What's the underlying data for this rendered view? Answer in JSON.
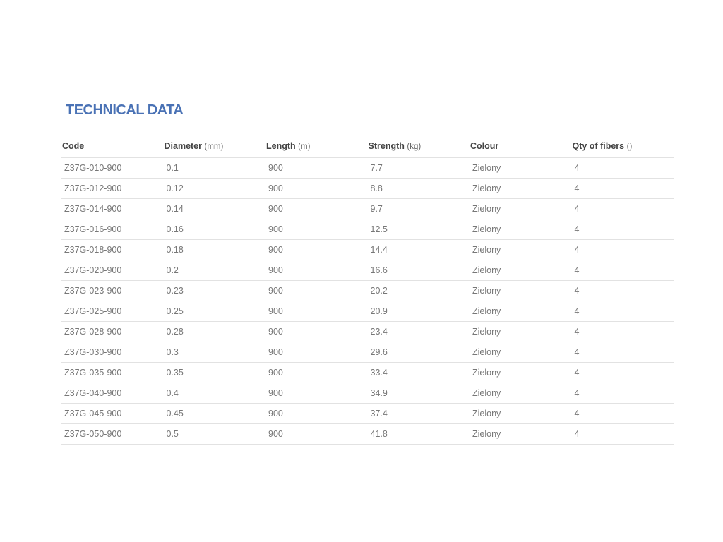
{
  "title": "TECHNICAL DATA",
  "columns": [
    {
      "label": "Code",
      "unit": ""
    },
    {
      "label": "Diameter",
      "unit": "(mm)"
    },
    {
      "label": "Length",
      "unit": "(m)"
    },
    {
      "label": "Strength",
      "unit": "(kg)"
    },
    {
      "label": "Colour",
      "unit": ""
    },
    {
      "label": "Qty of fibers",
      "unit": "()"
    }
  ],
  "rows": [
    [
      "Z37G-010-900",
      "0.1",
      "900",
      "7.7",
      "Zielony",
      "4"
    ],
    [
      "Z37G-012-900",
      "0.12",
      "900",
      "8.8",
      "Zielony",
      "4"
    ],
    [
      "Z37G-014-900",
      "0.14",
      "900",
      "9.7",
      "Zielony",
      "4"
    ],
    [
      "Z37G-016-900",
      "0.16",
      "900",
      "12.5",
      "Zielony",
      "4"
    ],
    [
      "Z37G-018-900",
      "0.18",
      "900",
      "14.4",
      "Zielony",
      "4"
    ],
    [
      "Z37G-020-900",
      "0.2",
      "900",
      "16.6",
      "Zielony",
      "4"
    ],
    [
      "Z37G-023-900",
      "0.23",
      "900",
      "20.2",
      "Zielony",
      "4"
    ],
    [
      "Z37G-025-900",
      "0.25",
      "900",
      "20.9",
      "Zielony",
      "4"
    ],
    [
      "Z37G-028-900",
      "0.28",
      "900",
      "23.4",
      "Zielony",
      "4"
    ],
    [
      "Z37G-030-900",
      "0.3",
      "900",
      "29.6",
      "Zielony",
      "4"
    ],
    [
      "Z37G-035-900",
      "0.35",
      "900",
      "33.4",
      "Zielony",
      "4"
    ],
    [
      "Z37G-040-900",
      "0.4",
      "900",
      "34.9",
      "Zielony",
      "4"
    ],
    [
      "Z37G-045-900",
      "0.45",
      "900",
      "37.4",
      "Zielony",
      "4"
    ],
    [
      "Z37G-050-900",
      "0.5",
      "900",
      "41.8",
      "Zielony",
      "4"
    ]
  ]
}
